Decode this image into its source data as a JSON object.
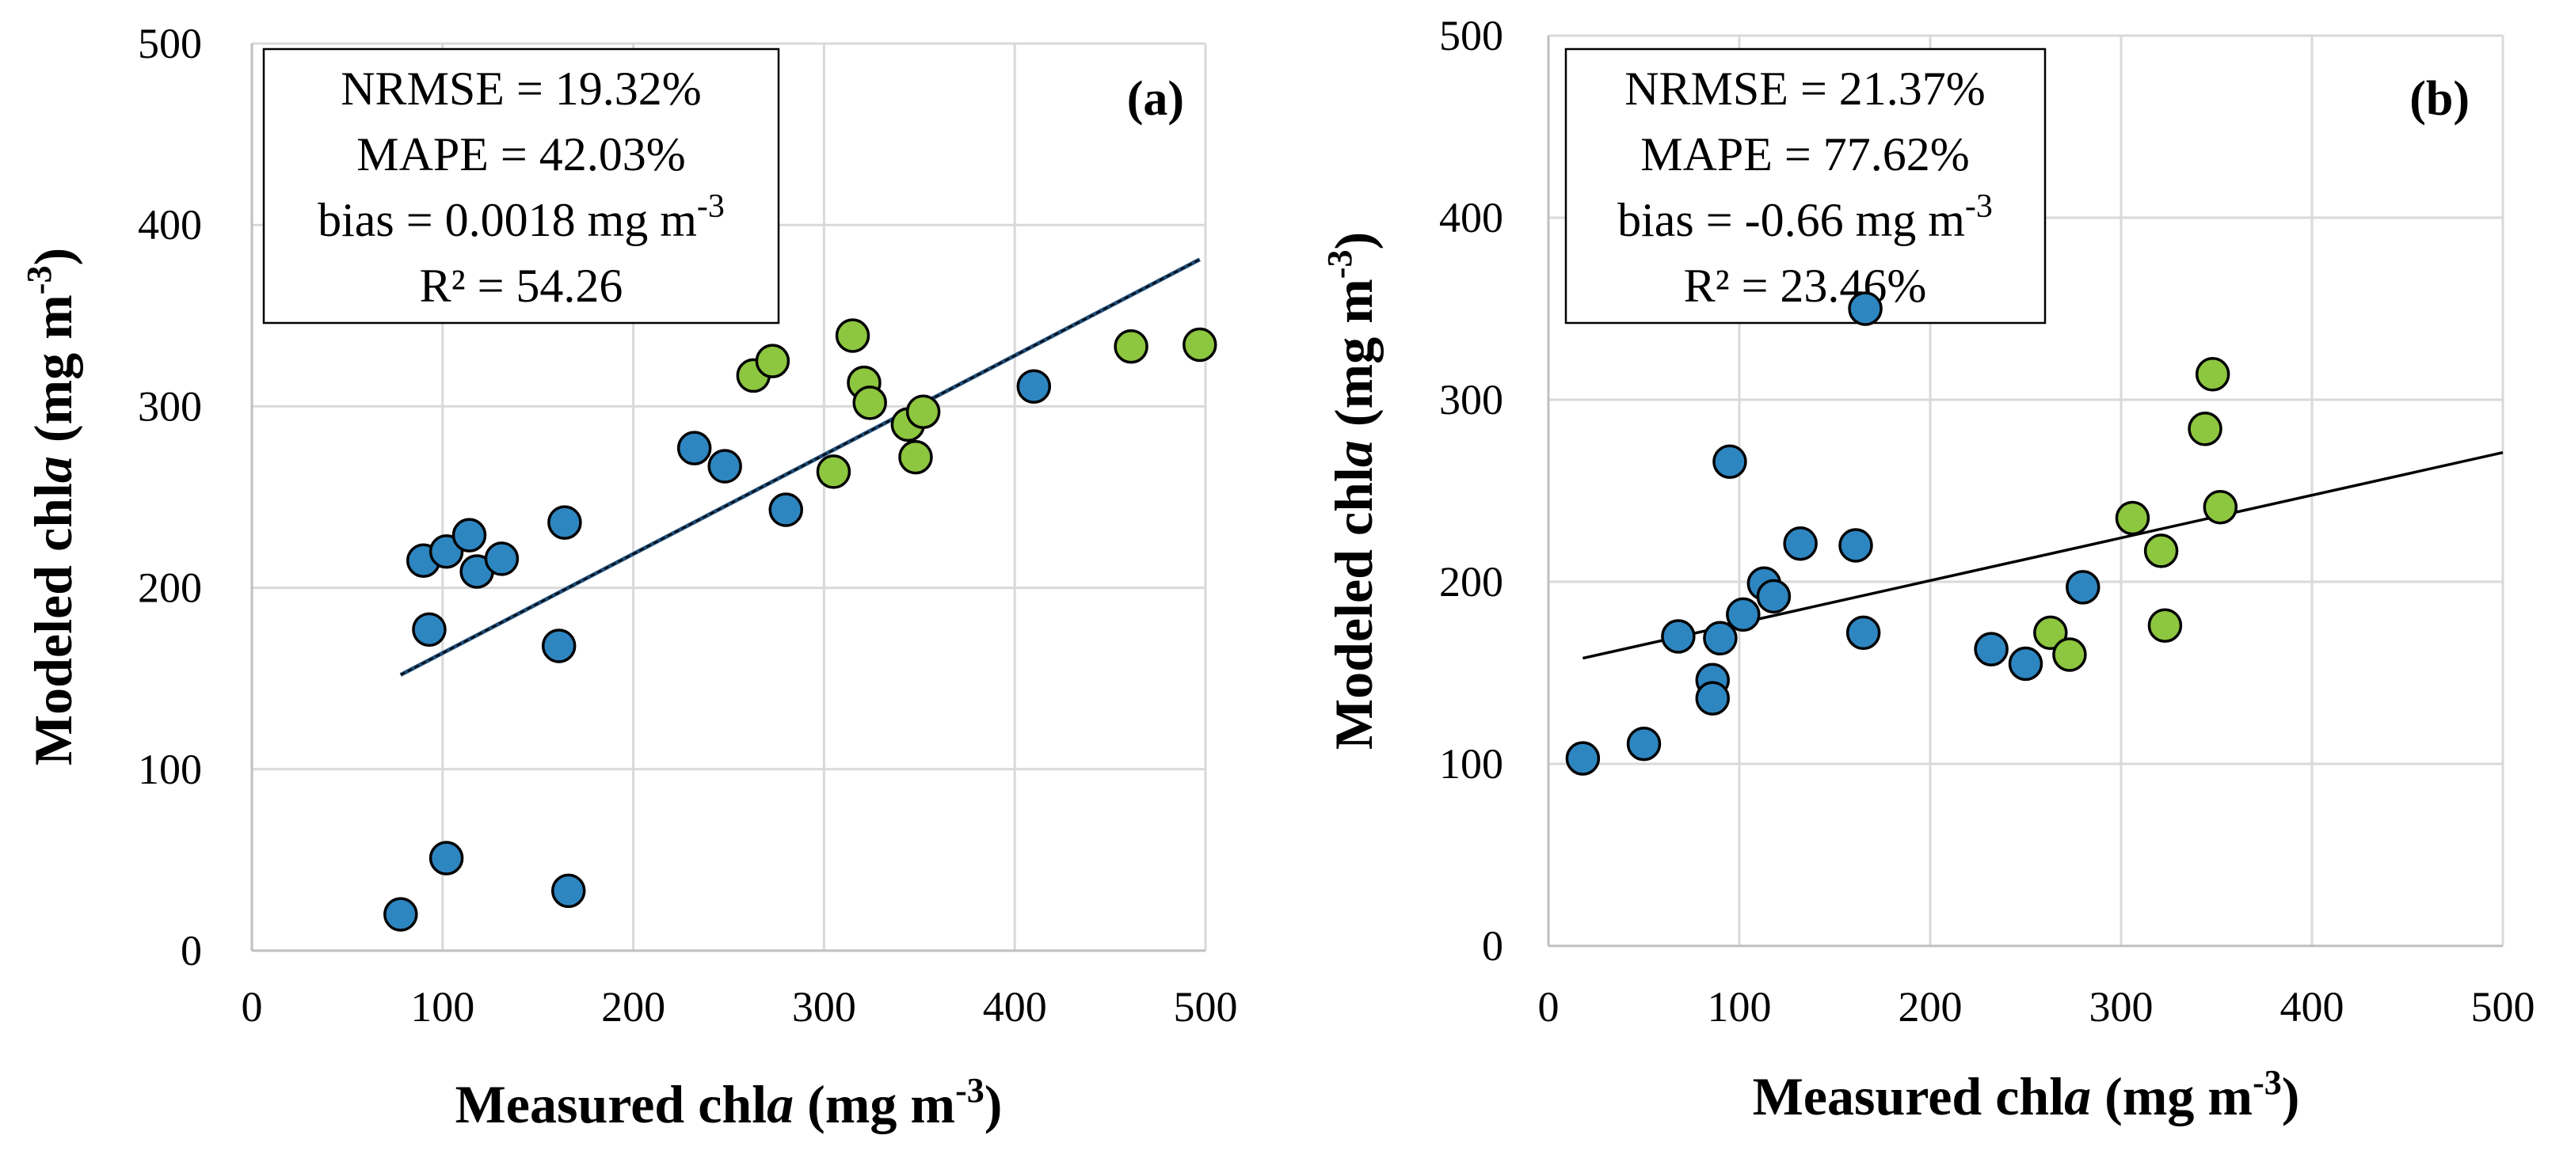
{
  "colors": {
    "blue": "#2E86C1",
    "green": "#8DC63F",
    "grid": "#D9D9D9",
    "axis": "#BFBFBF",
    "trend_a": "#1F4E79"
  },
  "chart_data": [
    {
      "type": "scatter",
      "panel_label": "(a)",
      "xlabel": {
        "pre": "Measured chl",
        "italic": "a",
        "post": " (mg m",
        "sup": "-3",
        "close": ")"
      },
      "ylabel": {
        "pre": "Modeled chl",
        "italic": "a",
        "post": " (mg m",
        "sup": "-3",
        "close": ")"
      },
      "xlim": [
        0,
        500
      ],
      "ylim": [
        0,
        500
      ],
      "xticks": [
        0,
        100,
        200,
        300,
        400,
        500
      ],
      "yticks": [
        0,
        100,
        200,
        300,
        400,
        500
      ],
      "grid": true,
      "stats": {
        "nrmse": "NRMSE = 19.32%",
        "mape": "MAPE = 42.03%",
        "bias_text": "bias = 0.0018 mg m",
        "bias_sup": "-3",
        "r2": "R² = 54.26"
      },
      "trendline": {
        "x": [
          78,
          497
        ],
        "y": [
          152,
          381
        ]
      },
      "series": [
        {
          "name": "blue",
          "points": [
            [
              78,
              20
            ],
            [
              102,
              51
            ],
            [
              166,
              33
            ],
            [
              90,
              215
            ],
            [
              102,
              220
            ],
            [
              114,
              229
            ],
            [
              118,
              209
            ],
            [
              131,
              216
            ],
            [
              93,
              177
            ],
            [
              164,
              236
            ],
            [
              161,
              168
            ],
            [
              232,
              277
            ],
            [
              248,
              267
            ],
            [
              280,
              243
            ],
            [
              410,
              311
            ]
          ]
        },
        {
          "name": "green",
          "points": [
            [
              263,
              317
            ],
            [
              273,
              325
            ],
            [
              315,
              339
            ],
            [
              321,
              313
            ],
            [
              324,
              302
            ],
            [
              305,
              264
            ],
            [
              344,
              290
            ],
            [
              352,
              297
            ],
            [
              348,
              272
            ],
            [
              461,
              333
            ],
            [
              497,
              334
            ]
          ]
        }
      ]
    },
    {
      "type": "scatter",
      "panel_label": "(b)",
      "xlabel": {
        "pre": "Measured chl",
        "italic": "a",
        "post": " (mg m",
        "sup": "-3",
        "close": ")"
      },
      "ylabel": {
        "pre": "Modeled chl",
        "italic": "a",
        "post": " (mg m",
        "sup": "-3",
        "close": ")"
      },
      "xlim": [
        0,
        500
      ],
      "ylim": [
        0,
        500
      ],
      "xticks": [
        0,
        100,
        200,
        300,
        400,
        500
      ],
      "yticks": [
        0,
        100,
        200,
        300,
        400,
        500
      ],
      "grid": true,
      "stats": {
        "nrmse": "NRMSE = 21.37%",
        "mape": "MAPE = 77.62%",
        "bias_text": "bias = -0.66 mg m",
        "bias_sup": "-3",
        "r2": "R² = 23.46%"
      },
      "trendline": {
        "x": [
          18,
          500
        ],
        "y": [
          158,
          271
        ]
      },
      "series": [
        {
          "name": "blue",
          "points": [
            [
              18,
              103
            ],
            [
              50,
              111
            ],
            [
              68,
              170
            ],
            [
              86,
              146
            ],
            [
              86,
              136
            ],
            [
              90,
              169
            ],
            [
              95,
              266
            ],
            [
              102,
              182
            ],
            [
              113,
              199
            ],
            [
              118,
              192
            ],
            [
              132,
              221
            ],
            [
              161,
              220
            ],
            [
              165,
              172
            ],
            [
              166,
              350
            ],
            [
              232,
              163
            ],
            [
              250,
              155
            ],
            [
              280,
              197
            ]
          ]
        },
        {
          "name": "green",
          "points": [
            [
              263,
              172
            ],
            [
              273,
              160
            ],
            [
              306,
              235
            ],
            [
              321,
              217
            ],
            [
              323,
              176
            ],
            [
              344,
              284
            ],
            [
              348,
              314
            ],
            [
              352,
              241
            ]
          ]
        }
      ]
    }
  ]
}
